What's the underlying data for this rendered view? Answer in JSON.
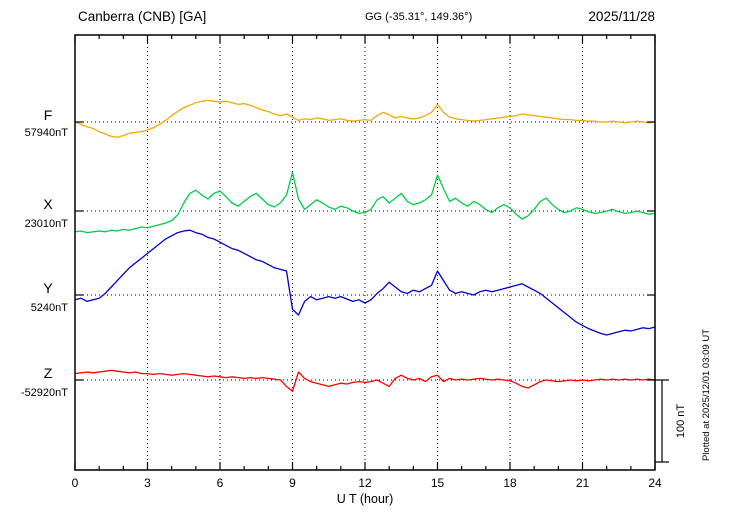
{
  "header": {
    "station": "Canberra (CNB)  [GA]",
    "coords": "GG (-35.31°, 149.36°)",
    "date": "2025/11/28"
  },
  "footer": {
    "xlabel": "U T (hour)",
    "plotted_at": "Plotted at 2025/12/01 03:09 UT",
    "scale_label": "100 nT"
  },
  "chart_data": {
    "type": "line",
    "title": "Canberra (CNB) [GA] magnetogram 2025/11/28",
    "xlabel": "U T (hour)",
    "x_range": [
      0,
      24
    ],
    "x_ticks": [
      0,
      3,
      6,
      9,
      12,
      15,
      18,
      21,
      24
    ],
    "x_step_hours": 0.25,
    "scale_bar_nT": 100,
    "grid": "dotted vertical at 3h intervals, dotted horizontal at each channel baseline",
    "legend_position": "left margin, one colored label per channel",
    "series": [
      {
        "name": "F",
        "base_label": "57940nT",
        "base_value_nT": 57940,
        "color": "#f5a800",
        "offsets_nT": [
          0,
          -3,
          -6,
          -8,
          -12,
          -15,
          -18,
          -19,
          -17,
          -14,
          -13,
          -12,
          -10,
          -7,
          -3,
          2,
          8,
          13,
          18,
          21,
          24,
          26,
          27,
          26,
          25,
          26,
          24,
          22,
          23,
          21,
          18,
          15,
          13,
          10,
          8,
          10,
          6,
          2,
          4,
          3,
          5,
          4,
          2,
          3,
          4,
          2,
          1,
          2,
          3,
          2,
          8,
          12,
          9,
          5,
          7,
          5,
          4,
          5,
          8,
          12,
          22,
          12,
          6,
          4,
          3,
          2,
          1,
          2,
          3,
          4,
          5,
          6,
          7,
          8,
          10,
          9,
          8,
          7,
          6,
          5,
          4,
          3,
          3,
          2,
          2,
          1,
          1,
          0,
          0,
          1,
          0,
          -1,
          0,
          1,
          0,
          -1,
          0
        ]
      },
      {
        "name": "X",
        "base_label": "23010nT",
        "base_value_nT": 23010,
        "color": "#00cc44",
        "offsets_nT": [
          -26,
          -25,
          -27,
          -26,
          -25,
          -26,
          -24,
          -25,
          -23,
          -24,
          -22,
          -20,
          -21,
          -19,
          -17,
          -15,
          -12,
          -5,
          10,
          22,
          26,
          20,
          15,
          22,
          25,
          18,
          10,
          6,
          12,
          18,
          22,
          15,
          8,
          5,
          10,
          20,
          48,
          15,
          2,
          8,
          14,
          10,
          5,
          2,
          6,
          4,
          0,
          -3,
          -2,
          2,
          14,
          18,
          10,
          16,
          22,
          12,
          8,
          10,
          14,
          20,
          45,
          28,
          12,
          16,
          10,
          6,
          12,
          8,
          2,
          -2,
          4,
          8,
          4,
          -4,
          -10,
          -6,
          2,
          12,
          16,
          8,
          2,
          -2,
          0,
          4,
          2,
          -1,
          -3,
          -2,
          0,
          2,
          -1,
          -3,
          -2,
          0,
          -2,
          -4,
          -3
        ]
      },
      {
        "name": "Y",
        "base_label": "5240nT",
        "base_value_nT": 5240,
        "color": "#0000cc",
        "offsets_nT": [
          -6,
          -4,
          -8,
          -6,
          -4,
          2,
          10,
          18,
          26,
          34,
          40,
          46,
          52,
          58,
          64,
          70,
          74,
          78,
          80,
          81,
          78,
          76,
          72,
          70,
          66,
          62,
          58,
          56,
          52,
          48,
          44,
          42,
          38,
          34,
          32,
          30,
          -18,
          -25,
          -8,
          -2,
          -6,
          -4,
          -2,
          -4,
          -2,
          -5,
          -8,
          -6,
          -10,
          -6,
          2,
          8,
          16,
          10,
          4,
          2,
          6,
          4,
          8,
          12,
          30,
          18,
          6,
          2,
          4,
          2,
          0,
          4,
          6,
          4,
          6,
          8,
          10,
          12,
          14,
          10,
          6,
          2,
          -4,
          -10,
          -16,
          -22,
          -28,
          -34,
          -38,
          -42,
          -45,
          -48,
          -50,
          -48,
          -46,
          -44,
          -45,
          -43,
          -41,
          -42,
          -40
        ]
      },
      {
        "name": "Z",
        "base_label": "-52920nT",
        "base_value_nT": -52920,
        "color": "#ff0000",
        "offsets_nT": [
          8,
          9,
          10,
          9,
          10,
          11,
          12,
          11,
          10,
          9,
          10,
          8,
          8,
          7,
          8,
          7,
          6,
          7,
          8,
          7,
          6,
          5,
          4,
          5,
          4,
          3,
          4,
          3,
          2,
          3,
          2,
          3,
          2,
          1,
          0,
          -8,
          -14,
          10,
          2,
          -2,
          -4,
          -6,
          -8,
          -6,
          -4,
          -5,
          -3,
          -2,
          -3,
          -2,
          0,
          -4,
          -8,
          2,
          6,
          2,
          0,
          2,
          -2,
          4,
          6,
          -2,
          2,
          0,
          1,
          0,
          1,
          2,
          1,
          0,
          1,
          0,
          -1,
          -4,
          -8,
          -10,
          -6,
          -2,
          0,
          -1,
          -2,
          -1,
          0,
          -1,
          0,
          -1,
          0,
          1,
          0,
          1,
          0,
          1,
          0,
          1,
          0,
          1,
          0
        ]
      }
    ]
  }
}
